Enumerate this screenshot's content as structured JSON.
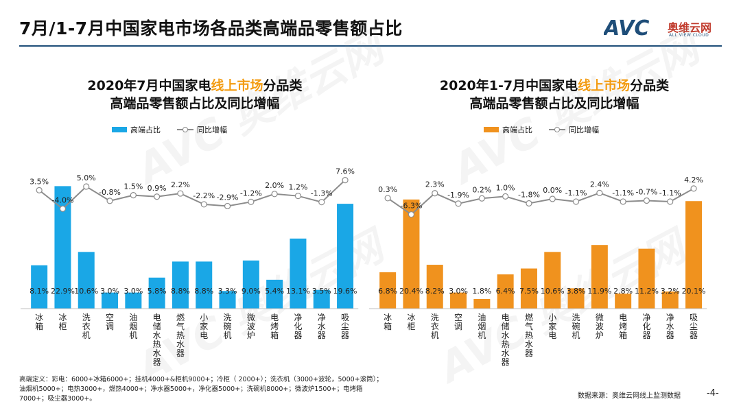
{
  "header": {
    "title": "7月/1-7月中国家电市场各品类高端品零售额占比",
    "logo_mark": "AVC",
    "logo_name": "奥维云网",
    "logo_sub": "ALL VIEW CLOUD"
  },
  "colors": {
    "left": "#1aa7e6",
    "right": "#f0921e",
    "line": "#8c8c8c",
    "accent": "#f39c12"
  },
  "watermark": "AVC 奥维云网",
  "legend": {
    "bar": "高端占比",
    "line": "同比增幅"
  },
  "charts": [
    {
      "title_a": "2020年7月中国家电",
      "title_hl": "线上市场",
      "title_b": "分品类",
      "title_line2": "高端品零售额占比及同比增幅"
    },
    {
      "title_a": "2020年1-7月中国家电",
      "title_hl": "线上市场",
      "title_b": "分品类",
      "title_line2": "高端品零售额占比及同比增幅"
    }
  ],
  "chart_data": [
    {
      "type": "bar",
      "categories": [
        "冰箱",
        "冰柜",
        "洗衣机",
        "空调",
        "油烟机",
        "电储水热水器",
        "燃气热水器",
        "小家电",
        "洗碗机",
        "微波炉",
        "电烤箱",
        "净化器",
        "净水器",
        "吸尘器"
      ],
      "series": [
        {
          "name": "高端占比",
          "values": [
            8.1,
            22.9,
            10.6,
            3.0,
            3.0,
            5.8,
            8.8,
            8.8,
            3.3,
            9.0,
            5.4,
            13.1,
            3.5,
            19.6
          ],
          "labels": [
            "8.1%",
            "22.9%",
            "10.6%",
            "3.0%",
            "3.0%",
            "5.8%",
            "8.8%",
            "8.8%",
            "3.3%",
            "9.0%",
            "5.4%",
            "13.1%",
            "3.5%",
            "19.6%"
          ]
        },
        {
          "name": "同比增幅",
          "type": "line",
          "values": [
            3.5,
            -4.0,
            5.0,
            -0.8,
            1.5,
            0.9,
            2.2,
            -2.2,
            -2.9,
            -1.2,
            2.0,
            1.2,
            -1.3,
            7.6
          ],
          "labels": [
            "3.5%",
            "-4.0%",
            "5.0%",
            "-0.8%",
            "1.5%",
            "0.9%",
            "2.2%",
            "-2.2%",
            "-2.9%",
            "-1.2%",
            "2.0%",
            "1.2%",
            "-1.3%",
            "7.6%"
          ]
        }
      ]
    },
    {
      "type": "bar",
      "categories": [
        "冰箱",
        "冰柜",
        "洗衣机",
        "空调",
        "油烟机",
        "电储水热水器",
        "燃气热水器",
        "小家电",
        "洗碗机",
        "微波炉",
        "电烤箱",
        "净化器",
        "净水器",
        "吸尘器"
      ],
      "series": [
        {
          "name": "高端占比",
          "values": [
            6.8,
            20.4,
            8.2,
            3.0,
            1.8,
            6.4,
            7.5,
            10.6,
            3.8,
            11.9,
            2.8,
            11.2,
            3.2,
            20.1
          ],
          "labels": [
            "6.8%",
            "20.4%",
            "8.2%",
            "3.0%",
            "1.8%",
            "6.4%",
            "7.5%",
            "10.6%",
            "3.8%",
            "11.9%",
            "2.8%",
            "11.2%",
            "3.2%",
            "20.1%"
          ]
        },
        {
          "name": "同比增幅",
          "type": "line",
          "values": [
            0.3,
            -6.3,
            2.3,
            -1.9,
            0.2,
            1.0,
            -1.8,
            0.0,
            -1.1,
            2.4,
            -1.1,
            -0.7,
            -1.1,
            4.2
          ],
          "labels": [
            "0.3%",
            "-6.3%",
            "2.3%",
            "-1.9%",
            "0.2%",
            "1.0%",
            "-1.8%",
            "0.0%",
            "-1.1%",
            "2.4%",
            "-1.1%",
            "-0.7%",
            "-1.1%",
            "4.2%"
          ]
        }
      ]
    }
  ],
  "footnote": "高端定义：彩电：6000+冰箱6000+；挂机4000+&柜机9000+；冷柜（ 2000+）；洗衣机（3000+波轮，5000+滚筒）；油烟机5000+；电热3000+，燃热4000+；净水器5000+，净化器5000+；洗碗机8000+；微波炉1500+；电烤箱7000+；吸尘器3000+。",
  "source": "数据来源：奥维云网线上监测数据",
  "page": "-4-"
}
